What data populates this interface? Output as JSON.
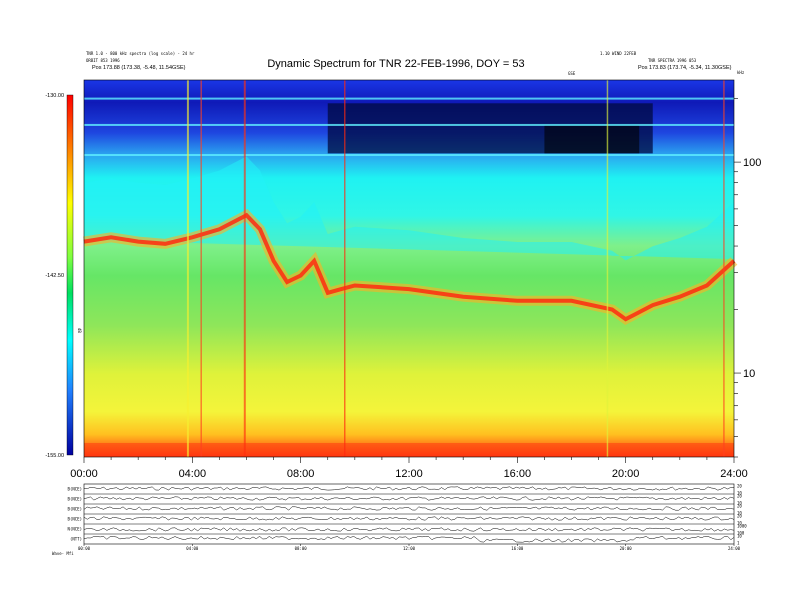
{
  "header": {
    "title": "Dynamic Spectrum for TNR 22-FEB-1996, DOY = 53",
    "left_info_1": "TNR 1.0 - 800 kHz spectra (log scale) - 24 hr",
    "left_info_2": "ORBIT 853 1996",
    "left_pos": "Pos    173.88 (173.38, -5.48, 11.54GSE)",
    "right_info_1": "1.10 WIND 22FEB",
    "right_info_2": "TNR SPECTRA 1996 053",
    "right_pos": "Pos    173.83 (173.74, -5.34, 11.30GSE)",
    "center_label": "GSE",
    "khz_label": "kHz"
  },
  "colorbar": {
    "max_label": "-130.00",
    "mid_label": "-142.50",
    "min_label": "-155.00",
    "unit_label": "dB"
  },
  "chart_data": [
    {
      "type": "heatmap",
      "title": "Dynamic Spectrum for TNR 22-FEB-1996, DOY = 53",
      "xlabel": "",
      "ylabel": "kHz",
      "x_ticks": [
        "00:00",
        "04:00",
        "08:00",
        "12:00",
        "16:00",
        "20:00",
        "24:00"
      ],
      "xlim_hours": [
        0,
        24
      ],
      "y_scale": "log",
      "ylim_khz": [
        4,
        245
      ],
      "y_ticks": [
        10,
        100
      ],
      "colorbar_range_db": [
        -155.0,
        -130.0
      ],
      "colorbar_ticks": [
        -155.0,
        -142.5,
        -130.0
      ],
      "plasma_line_khz": {
        "hours": [
          0,
          1,
          2,
          3,
          4,
          5,
          6,
          6.5,
          7,
          7.5,
          8,
          8.5,
          9,
          9.5,
          10,
          12,
          14,
          16,
          18,
          19.5,
          20,
          21,
          22,
          23,
          24
        ],
        "values": [
          42,
          44,
          42,
          41,
          44,
          48,
          56,
          48,
          34,
          27,
          29,
          34,
          24,
          25,
          26,
          25,
          23,
          22,
          22,
          20,
          18,
          21,
          23,
          26,
          34
        ]
      }
    },
    {
      "type": "line",
      "series": [
        {
          "name": "B(NCE)",
          "right_ticks": [
            "20",
            "10"
          ]
        },
        {
          "name": "B(NCE)",
          "right_ticks": [
            "20",
            "10"
          ]
        },
        {
          "name": "B(NCE)",
          "right_ticks": [
            "20",
            "10"
          ]
        },
        {
          "name": "B(NCE)",
          "right_ticks": [
            "20",
            "10"
          ]
        },
        {
          "name": "N(NCE)",
          "right_ticks": [
            "1000",
            "100"
          ]
        },
        {
          "name": "(NTT)",
          "right_ticks": [
            "10",
            "1"
          ]
        }
      ],
      "x_ticks": [
        "00:00",
        "04:00",
        "08:00",
        "12:00",
        "16:00",
        "20:00",
        "24:00"
      ],
      "footer_label": "Wave-  Mfi"
    }
  ]
}
